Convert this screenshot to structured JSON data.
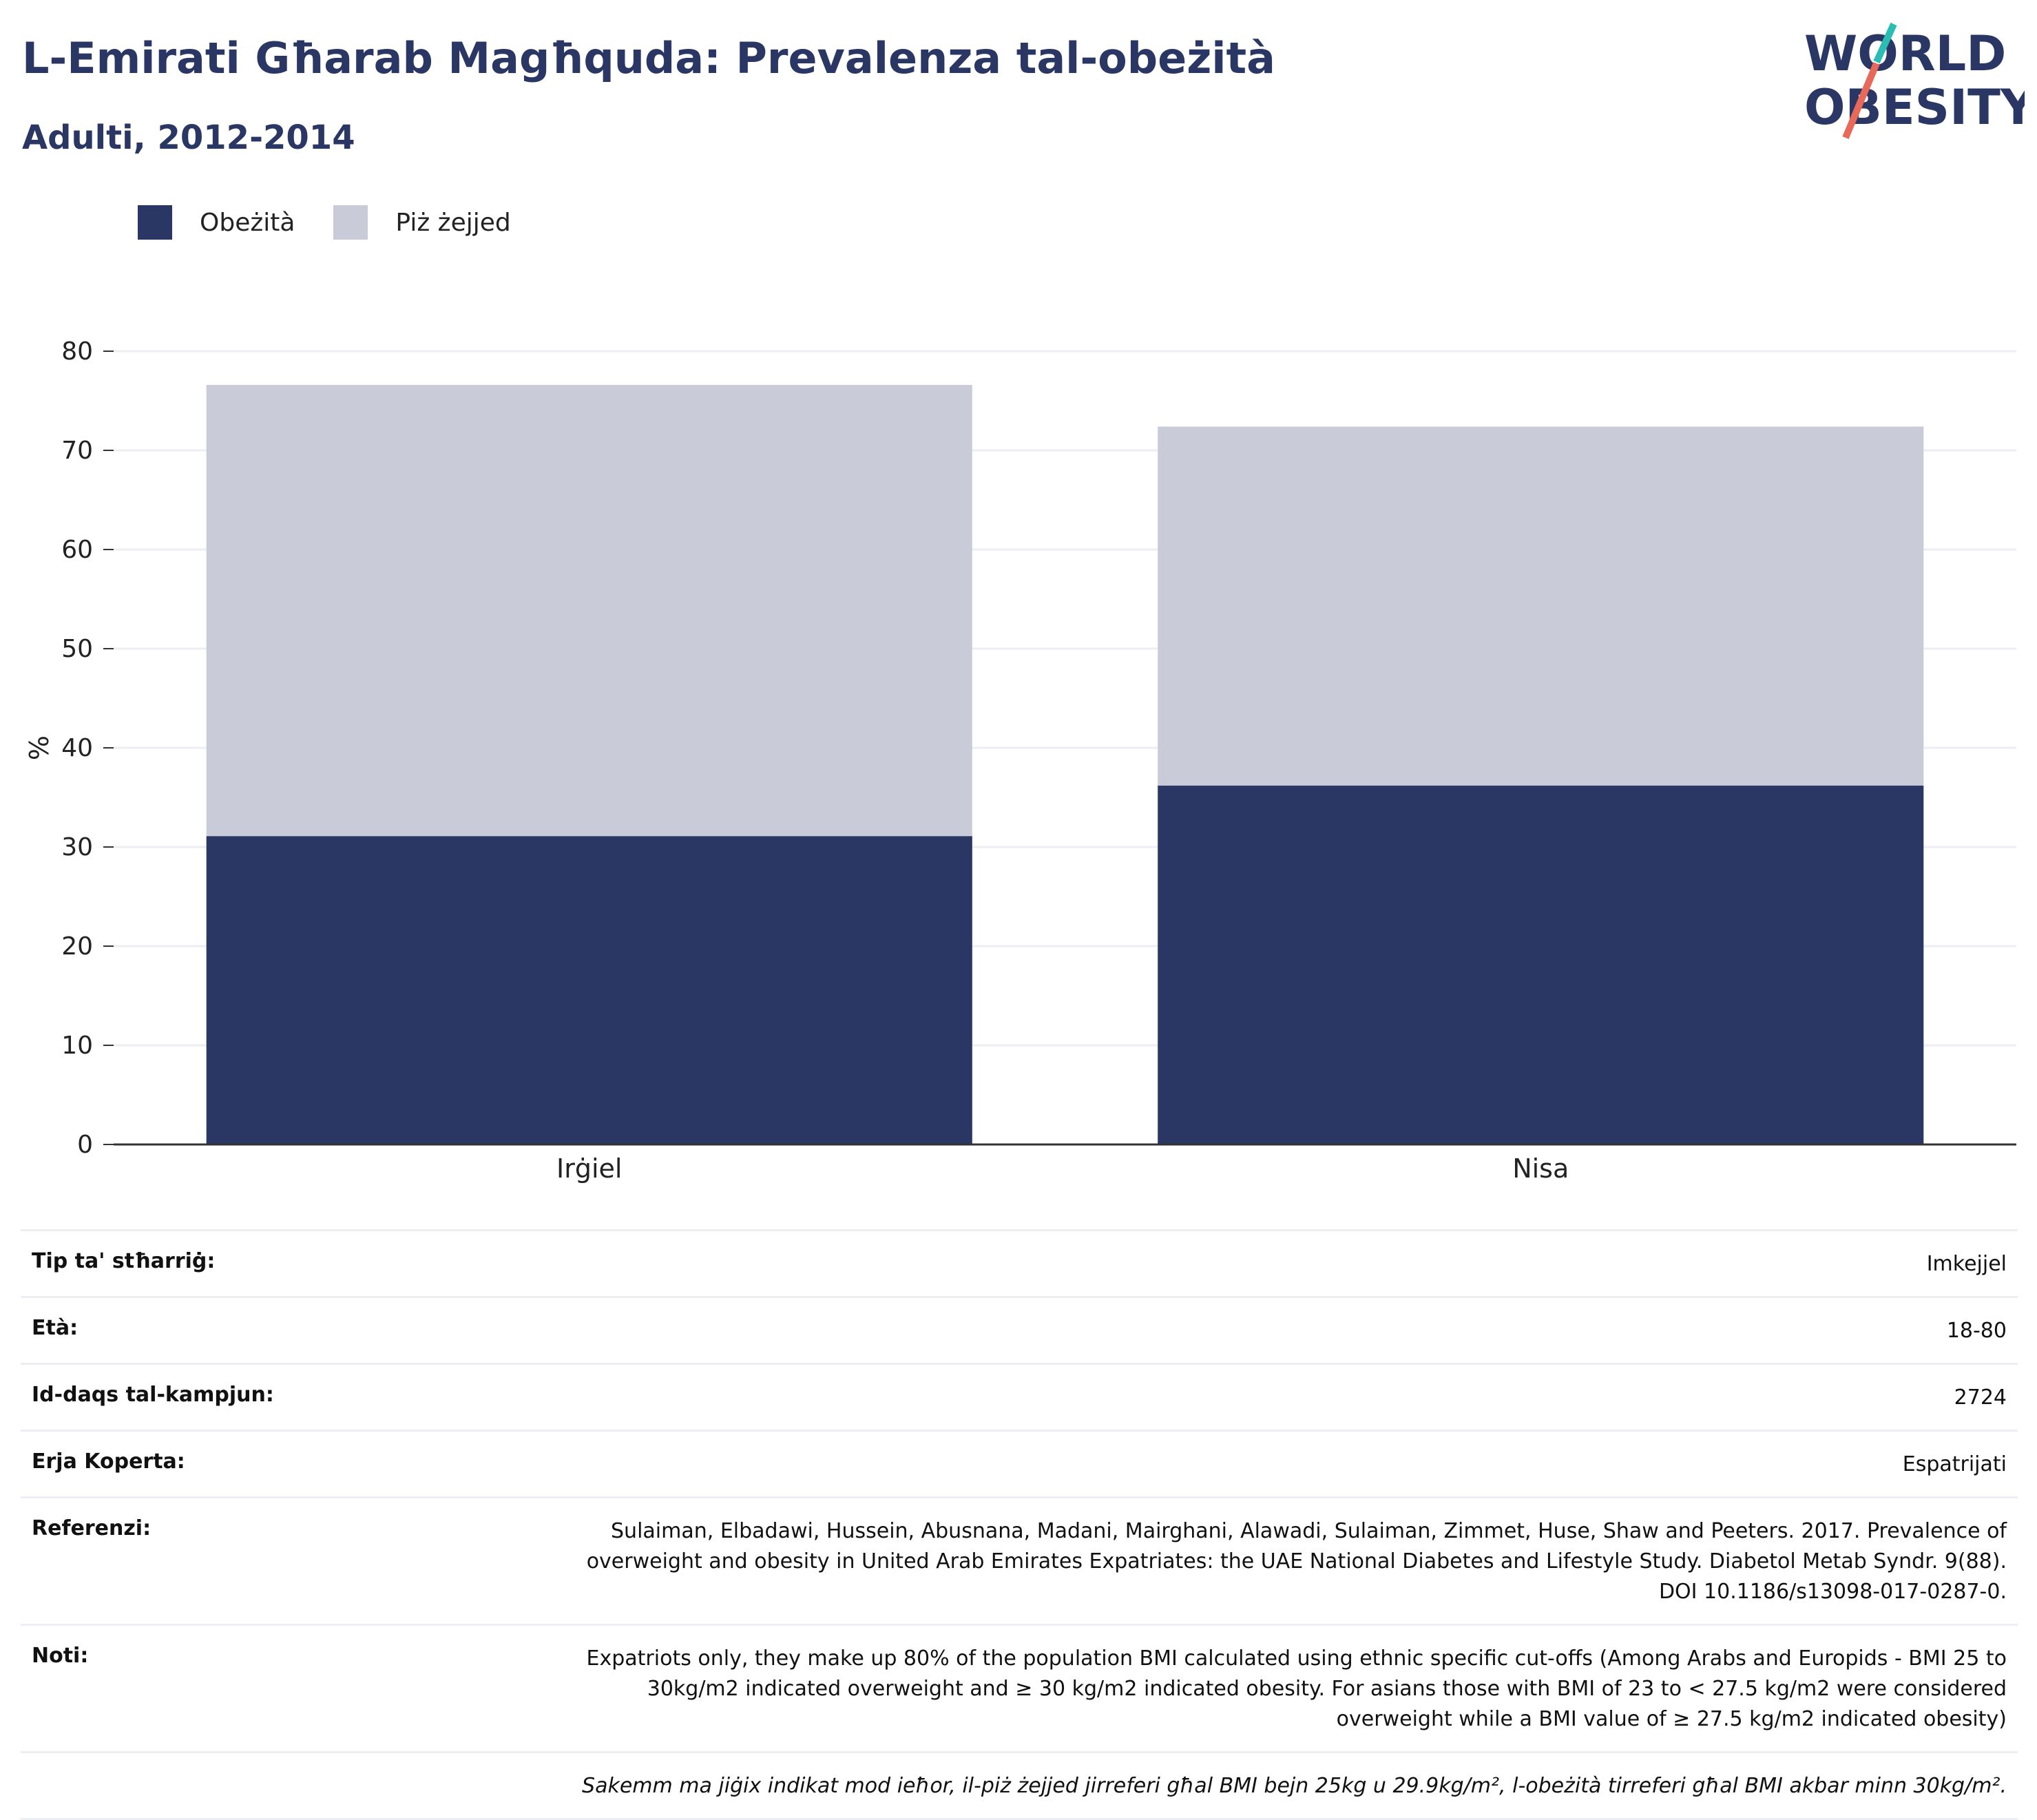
{
  "header": {
    "title": "L-Emirati Għarab Magħquda: Prevalenza tal-obeżità",
    "subtitle": "Adulti, 2012-2014"
  },
  "logo": {
    "line1": "WORLD",
    "line2": "OBESITY",
    "accent1": "#2bbcb3",
    "accent2": "#e8685a"
  },
  "legend": [
    {
      "label": "Obeżità",
      "color": "#2a3663"
    },
    {
      "label": "Piż żejjed",
      "color": "#c9ccd8"
    }
  ],
  "chart_data": {
    "type": "bar",
    "stacked": true,
    "categories": [
      "Irġiel",
      "Nisa"
    ],
    "series": [
      {
        "name": "Obeżità",
        "values": [
          31.1,
          36.2
        ],
        "color": "#2a3663"
      },
      {
        "name": "Piż żejjed",
        "values": [
          45.5,
          36.2
        ],
        "color": "#c9ccd8"
      }
    ],
    "ylabel": "%",
    "ylim": [
      0,
      80
    ],
    "yticks": [
      0,
      10,
      20,
      30,
      40,
      50,
      60,
      70,
      80
    ],
    "grid": true,
    "legend_position": "top-left"
  },
  "info": [
    {
      "key": "Tip ta' stħarriġ:",
      "value": "Imkejjel"
    },
    {
      "key": "Età:",
      "value": "18-80"
    },
    {
      "key": "Id-daqs tal-kampjun:",
      "value": "2724"
    },
    {
      "key": "Erja Koperta:",
      "value": "Espatrijati"
    },
    {
      "key": "Referenzi:",
      "value": "Sulaiman, Elbadawi, Hussein, Abusnana, Madani, Mairghani, Alawadi, Sulaiman, Zimmet, Huse, Shaw and Peeters. 2017. Prevalence of overweight and obesity in United Arab Emirates Expatriates: the UAE National Diabetes and Lifestyle Study. Diabetol Metab Syndr. 9(88). DOI 10.1186/s13098-017-0287-0."
    },
    {
      "key": "Noti:",
      "value": "Expatriots only, they make up 80% of the population BMI calculated using ethnic specific cut-offs (Among Arabs and Europids - BMI 25 to 30kg/m2 indicated overweight and ≥ 30 kg/m2 indicated obesity. For asians those with BMI of 23 to < 27.5 kg/m2 were considered overweight while a BMI value of ≥ 27.5 kg/m2 indicated obesity)"
    }
  ],
  "footnote": "Sakemm ma jiġix indikat mod ieħor, il-piż żejjed jirreferi għal BMI bejn 25kg u 29.9kg/m², l-obeżità tirreferi għal BMI akbar minn 30kg/m²."
}
